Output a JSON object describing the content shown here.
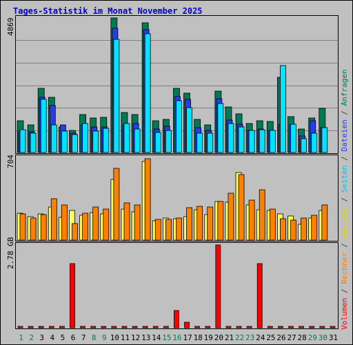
{
  "chart_data": [
    {
      "type": "bar",
      "title": "Tages-Statistik im Monat November 2025",
      "panel": "Anfragen / Dateien / Seiten",
      "categories": [
        "1",
        "2",
        "3",
        "4",
        "5",
        "6",
        "7",
        "8",
        "9",
        "10",
        "11",
        "12",
        "13",
        "14",
        "15",
        "16",
        "17",
        "18",
        "19",
        "20",
        "21",
        "22",
        "23",
        "24",
        "25",
        "26",
        "27",
        "28",
        "29",
        "30",
        "31"
      ],
      "weekend_days": [
        "1",
        "2",
        "8",
        "9",
        "15",
        "16",
        "22",
        "23",
        "29",
        "30"
      ],
      "y_tick_label": "4869",
      "ylim": [
        0,
        4869
      ],
      "series": [
        {
          "name": "Anfragen",
          "color": "#007a55",
          "values": [
            1150,
            1000,
            2330,
            2010,
            930,
            810,
            1370,
            1240,
            1270,
            4860,
            1450,
            1370,
            4700,
            1150,
            1190,
            2310,
            2150,
            1190,
            1010,
            2210,
            1650,
            1400,
            1050,
            1150,
            1120,
            2730,
            1290,
            860,
            1240,
            1600,
            0
          ]
        },
        {
          "name": "Dateien",
          "color": "#2a3aef",
          "values": [
            780,
            740,
            2000,
            1700,
            1000,
            700,
            1000,
            930,
            930,
            4500,
            1010,
            1040,
            4450,
            860,
            950,
            2030,
            1930,
            890,
            810,
            1950,
            1170,
            1030,
            790,
            840,
            800,
            1030,
            1000,
            600,
            1150,
            900,
            0
          ]
        },
        {
          "name": "Seiten",
          "color": "#00e4ff",
          "values": [
            820,
            690,
            1930,
            1000,
            780,
            650,
            1040,
            780,
            870,
            4090,
            1060,
            840,
            4300,
            730,
            790,
            1880,
            1620,
            690,
            700,
            1780,
            1040,
            930,
            800,
            830,
            800,
            3150,
            1020,
            500,
            710,
            890,
            0
          ]
        }
      ]
    },
    {
      "type": "bar",
      "panel": "Besuche / Rechner",
      "categories": [
        "1",
        "2",
        "3",
        "4",
        "5",
        "6",
        "7",
        "8",
        "9",
        "10",
        "11",
        "12",
        "13",
        "14",
        "15",
        "16",
        "17",
        "18",
        "19",
        "20",
        "21",
        "22",
        "23",
        "24",
        "25",
        "26",
        "27",
        "28",
        "29",
        "30",
        "31"
      ],
      "y_tick_label": "704",
      "ylim": [
        0,
        704
      ],
      "series": [
        {
          "name": "Besuche",
          "color": "#ffff55",
          "values": [
            226,
            201,
            224,
            283,
            192,
            251,
            211,
            235,
            222,
            518,
            264,
            242,
            671,
            165,
            190,
            179,
            200,
            259,
            218,
            328,
            321,
            572,
            301,
            260,
            252,
            224,
            203,
            136,
            190,
            250,
            0
          ]
        },
        {
          "name": "Rechner",
          "color": "#ff8000",
          "values": [
            225,
            190,
            218,
            350,
            298,
            140,
            230,
            280,
            262,
            610,
            318,
            298,
            690,
            175,
            175,
            185,
            274,
            285,
            280,
            330,
            400,
            560,
            341,
            430,
            265,
            180,
            170,
            190,
            210,
            298,
            0
          ]
        }
      ]
    },
    {
      "type": "bar",
      "panel": "Volumen",
      "categories": [
        "1",
        "2",
        "3",
        "4",
        "5",
        "6",
        "7",
        "8",
        "9",
        "10",
        "11",
        "12",
        "13",
        "14",
        "15",
        "16",
        "17",
        "18",
        "19",
        "20",
        "21",
        "22",
        "23",
        "24",
        "25",
        "26",
        "27",
        "28",
        "29",
        "30",
        "31"
      ],
      "y_tick_label": "2.78 GB",
      "ylim": [
        0,
        2.78
      ],
      "unit": "GB",
      "series": [
        {
          "name": "Volumen",
          "color": "#ff0000",
          "values": [
            0.02,
            0.02,
            0.03,
            0.04,
            0.03,
            2.15,
            0.03,
            0.03,
            0.03,
            0.03,
            0.03,
            0.03,
            0.03,
            0.03,
            0.03,
            0.58,
            0.18,
            0.03,
            0.02,
            2.78,
            0.03,
            0.03,
            0.03,
            2.15,
            0.02,
            0.02,
            0.02,
            0.02,
            0.04,
            0.03,
            0.02
          ]
        }
      ]
    }
  ],
  "right_legend": [
    {
      "label": "Volumen",
      "color": "#ff0000"
    },
    {
      "label": " / ",
      "color": "#444444"
    },
    {
      "label": "Rechner",
      "color": "#ff8000"
    },
    {
      "label": " / ",
      "color": "#444444"
    },
    {
      "label": "Besuche",
      "color": "#e0d000"
    },
    {
      "label": " / ",
      "color": "#444444"
    },
    {
      "label": "Seiten",
      "color": "#00c8e8"
    },
    {
      "label": " / ",
      "color": "#444444"
    },
    {
      "label": "Dateien",
      "color": "#2a3aef"
    },
    {
      "label": " / ",
      "color": "#444444"
    },
    {
      "label": "Anfragen",
      "color": "#007a55"
    }
  ],
  "colors": {
    "title": "#0000cc",
    "weekend_label": "#007a55",
    "weekday_label": "#000000",
    "plot_bg": "#c0c0c0",
    "grid": "#808080",
    "frame": "#000000"
  }
}
